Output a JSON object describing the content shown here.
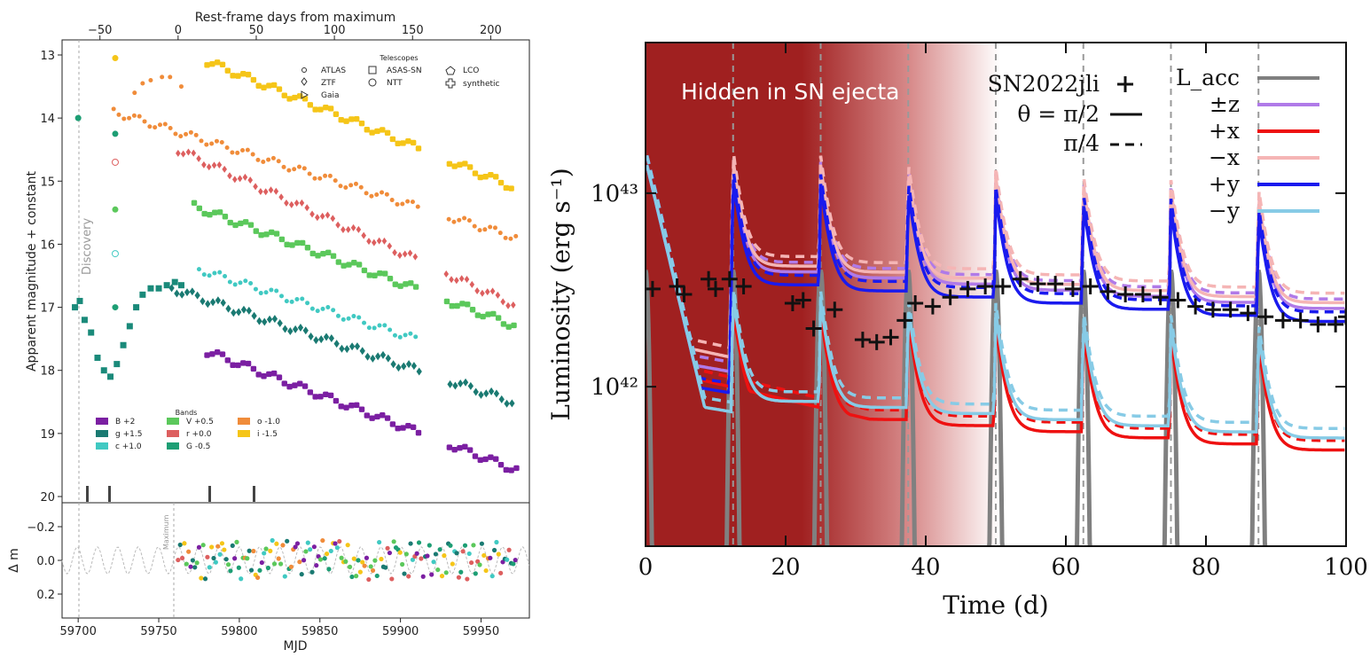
{
  "left_chart": {
    "top_axis_title": "Rest-frame days from maximum",
    "top_ticks": [
      "−50",
      "0",
      "50",
      "100",
      "150",
      "200"
    ],
    "ylabel": "Apparent magnitude + constant",
    "yticks": [
      "13",
      "14",
      "15",
      "16",
      "17",
      "18",
      "19",
      "20"
    ],
    "discovery_label": "Discovery",
    "maximum_label": "Maximum",
    "telescopes_title": "Telescopes",
    "telescopes": [
      "ATLAS",
      "ZTF",
      "Gaia",
      "ASAS-SN",
      "NTT",
      "LCO",
      "synthetic"
    ],
    "bands_title": "Bands",
    "bands": [
      {
        "label": "B +2",
        "color": "#7b1fa2"
      },
      {
        "label": "g +1.5",
        "color": "#1a7a72"
      },
      {
        "label": "c +1.0",
        "color": "#40c9c2"
      },
      {
        "label": "V +0.5",
        "color": "#5bc85b"
      },
      {
        "label": "r +0.0",
        "color": "#dd5f5f"
      },
      {
        "label": "G -0.5",
        "color": "#1d9e74"
      },
      {
        "label": "o -1.0",
        "color": "#f08c3a"
      },
      {
        "label": "i -1.5",
        "color": "#f5c518"
      }
    ],
    "resid_ylabel": "Δ m",
    "resid_yticks": [
      "−0.2",
      "0.0",
      "0.2"
    ],
    "xlabel": "MJD",
    "xticks": [
      "59700",
      "59750",
      "59800",
      "59850",
      "59900",
      "59950"
    ]
  },
  "chart_data": {
    "type": "line",
    "title": "",
    "xlabel": "Time (d)",
    "ylabel": "Luminosity (erg s⁻¹)",
    "xlim": [
      0,
      100
    ],
    "ylim": [
      1.5e+41,
      6e+43
    ],
    "yscale": "log",
    "xticks": [
      "0",
      "20",
      "40",
      "60",
      "80",
      "100"
    ],
    "yticks": [
      "10⁴²",
      "10⁴³"
    ],
    "overlay_text": "Hidden in SN ejecta",
    "legend_left": [
      {
        "label": "SN2022jli",
        "marker": "+"
      },
      {
        "label": "θ = π/2",
        "style": "solid"
      },
      {
        "label": "π/4",
        "style": "dashed"
      }
    ],
    "legend_right": [
      {
        "label": "L_acc",
        "color": "#808080"
      },
      {
        "label": "±z",
        "color": "#b07ae8"
      },
      {
        "label": "+x",
        "color": "#ee1111"
      },
      {
        "label": "−x",
        "color": "#f5b5b5"
      },
      {
        "label": "+y",
        "color": "#1a1aee"
      },
      {
        "label": "−y",
        "color": "#87cbe6"
      }
    ],
    "periastron_times": [
      12.5,
      25,
      37.5,
      50,
      62.5,
      75,
      87.5
    ],
    "observed": {
      "name": "SN2022jli",
      "x": [
        1,
        4.5,
        5.5,
        9,
        10,
        12,
        14,
        21,
        22.5,
        24,
        27,
        31,
        33,
        35,
        37,
        38.5,
        41,
        43.5,
        46,
        48.5,
        51,
        53.5,
        56,
        58.5,
        61,
        63.5,
        66,
        68.5,
        71,
        73.5,
        76,
        78.5,
        81,
        83.5,
        86,
        88.5,
        91,
        93.5,
        96,
        98.5,
        100
      ],
      "y": [
        3.2e+42,
        3.3e+42,
        3e+42,
        3.6e+42,
        3.2e+42,
        3.6e+42,
        3.3e+42,
        2.7e+42,
        2.8e+42,
        2e+42,
        2.5e+42,
        1.75e+42,
        1.7e+42,
        1.8e+42,
        2.2e+42,
        2.7e+42,
        2.6e+42,
        2.9e+42,
        3.2e+42,
        3.3e+42,
        3.3e+42,
        3.6e+42,
        3.4e+42,
        3.4e+42,
        3.2e+42,
        3.3e+42,
        3.1e+42,
        3e+42,
        3e+42,
        2.9e+42,
        2.8e+42,
        2.6e+42,
        2.5e+42,
        2.5e+42,
        2.4e+42,
        2.3e+42,
        2.2e+42,
        2.2e+42,
        2.1e+42,
        2.1e+42,
        2.3e+42
      ]
    },
    "series": [
      {
        "name": "±z",
        "color": "#b07ae8",
        "peak": 1.4e+43,
        "base": 2.6e+42,
        "base_end": 6e+41
      },
      {
        "name": "+x",
        "color": "#ee1111",
        "peak": 2.6e+42,
        "base": 2.3e+42,
        "base_end": 3.3e+41
      },
      {
        "name": "−x",
        "color": "#f5b5b5",
        "peak": 1.5e+43,
        "base": 3.2e+42,
        "base_end": 5.5e+41
      },
      {
        "name": "+y",
        "color": "#1a1aee",
        "peak": 1.2e+43,
        "base": 2e+42,
        "base_end": 5e+41
      },
      {
        "name": "−y",
        "color": "#87cbe6",
        "peak": 3e+42,
        "base": 1.6e+42,
        "base_end": 4e+41
      }
    ]
  }
}
